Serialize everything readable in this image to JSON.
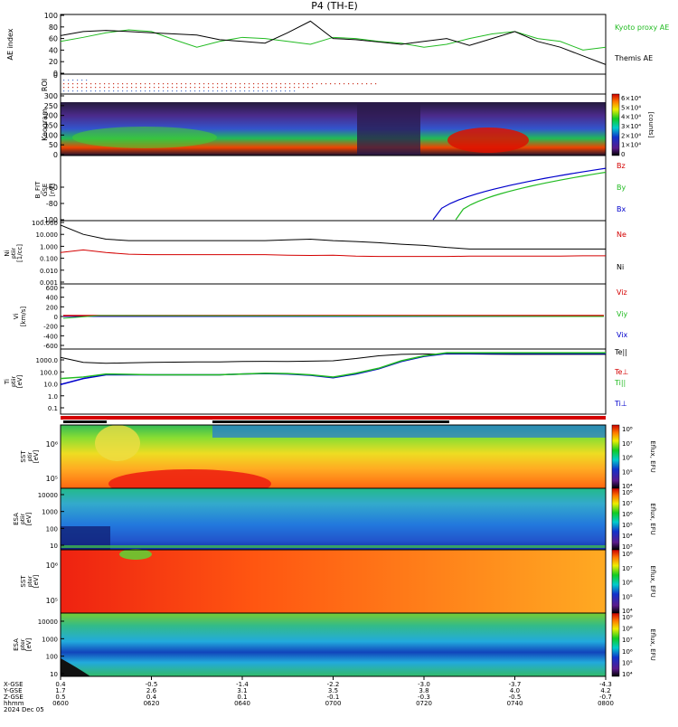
{
  "title": "P4 (TH-E)",
  "colors": {
    "axis": "#000000",
    "red": "#d40000",
    "green": "#22bb22",
    "blue": "#0000cc",
    "grey": "#888888"
  },
  "chart_data": [
    {
      "panel": "ae",
      "type": "line",
      "ylabel": "AE index",
      "ylim": [
        0,
        100
      ],
      "yticks": [
        "100",
        "80",
        "60",
        "40",
        "20",
        "0"
      ],
      "x": [
        0,
        5,
        10,
        15,
        20,
        25,
        30,
        35,
        40,
        45,
        50,
        55,
        60,
        65,
        70,
        75,
        80,
        85,
        90,
        95,
        100,
        105,
        110,
        115,
        120
      ],
      "series": [
        {
          "name": "Kyoto proxy AE",
          "color": "green",
          "values": [
            55,
            62,
            70,
            75,
            72,
            58,
            45,
            55,
            62,
            60,
            55,
            50,
            62,
            60,
            55,
            52,
            45,
            50,
            60,
            68,
            72,
            60,
            55,
            40,
            45
          ]
        },
        {
          "name": "Themis AE",
          "color": "black",
          "values": [
            65,
            72,
            74,
            72,
            70,
            68,
            66,
            58,
            55,
            52,
            70,
            90,
            60,
            58,
            54,
            50,
            55,
            60,
            48,
            60,
            72,
            55,
            45,
            30,
            15
          ]
        }
      ]
    },
    {
      "panel": "roi",
      "type": "scatter",
      "ylabel": "ROI",
      "ytick": "0"
    },
    {
      "panel": "keogram",
      "type": "heatmap",
      "ylabel": "Keogram",
      "ylim": [
        0,
        300
      ],
      "yticks": [
        "300",
        "250",
        "200",
        "150",
        "100",
        "50",
        "0"
      ],
      "colorbar": {
        "label": "[counts]",
        "ticks": [
          "6×10⁴",
          "5×10⁴",
          "4×10⁴",
          "3×10⁴",
          "2×10⁴",
          "1×10⁴",
          "0"
        ]
      }
    },
    {
      "panel": "bfit",
      "type": "line",
      "ylabel": "B_FIT",
      "ylabel_sub": "GSE",
      "yunit": "[nT]",
      "ylim": [
        -100,
        -20
      ],
      "yticks": [
        "-60",
        "-80",
        "-100"
      ],
      "series": [
        {
          "name": "Bz",
          "color": "red",
          "values": []
        },
        {
          "name": "By",
          "color": "green",
          "x": [
            87,
            120
          ],
          "values": [
            -100,
            -40
          ]
        },
        {
          "name": "Bx",
          "color": "blue",
          "x": [
            82,
            120
          ],
          "values": [
            -100,
            -35
          ]
        }
      ]
    },
    {
      "panel": "density",
      "type": "line",
      "ylabel": "Ni",
      "ylabel_sub": "ptiir",
      "yunit": "[1/cc]",
      "yscale": "log",
      "ylim": [
        0.001,
        100
      ],
      "yticks": [
        "100.000",
        "10.000",
        "1.000",
        "0.100",
        "0.010",
        "0.001"
      ],
      "series": [
        {
          "name": "Ne",
          "color": "red",
          "values": [
            0.3,
            0.5,
            0.3,
            0.22,
            0.2,
            0.2,
            0.2,
            0.2,
            0.2,
            0.2,
            0.18,
            0.17,
            0.18,
            0.15,
            0.14,
            0.14,
            0.14,
            0.14,
            0.15,
            0.15,
            0.15,
            0.15,
            0.15,
            0.16,
            0.16
          ]
        },
        {
          "name": "Ni",
          "color": "black",
          "values": [
            60,
            10,
            4,
            3,
            3,
            3,
            3,
            3,
            3,
            3,
            3.5,
            4,
            3,
            2.5,
            2,
            1.5,
            1.2,
            0.8,
            0.6,
            0.6,
            0.6,
            0.6,
            0.6,
            0.6,
            0.6
          ]
        }
      ]
    },
    {
      "panel": "velocity",
      "type": "line",
      "ylabel": "Vi",
      "yunit": "[km/s]",
      "ylim": [
        -700,
        700
      ],
      "yticks": [
        "600",
        "400",
        "200",
        "0",
        "-200",
        "-400",
        "-600"
      ],
      "series": [
        {
          "name": "Viz",
          "color": "red",
          "values": []
        },
        {
          "name": "Viy",
          "color": "green",
          "values": []
        },
        {
          "name": "Vix",
          "color": "blue",
          "values": []
        }
      ]
    },
    {
      "panel": "temperature",
      "type": "line",
      "ylabel": "Ti",
      "ylabel_sub": "ptiir",
      "yunit": "[eV]",
      "yscale": "log",
      "ylim": [
        0.05,
        5000
      ],
      "yticks": [
        "1000.0",
        "100.0",
        "10.0",
        "1.0",
        "0.1"
      ],
      "series": [
        {
          "name": "Te||",
          "color": "black",
          "values": [
            1500,
            600,
            500,
            550,
            600,
            620,
            650,
            650,
            700,
            720,
            700,
            750,
            800,
            1200,
            2000,
            2600,
            2800,
            2800,
            2800,
            2700,
            2600,
            2600,
            2600,
            2600,
            2600
          ]
        },
        {
          "name": "Te⊥",
          "color": "red",
          "values": []
        },
        {
          "name": "Ti||",
          "color": "green",
          "values": [
            30,
            40,
            70,
            65,
            60,
            60,
            60,
            60,
            70,
            80,
            75,
            60,
            40,
            80,
            200,
            800,
            2000,
            3500,
            3500,
            3500,
            3500,
            3500,
            3500,
            3500,
            3500
          ]
        },
        {
          "name": "Ti⊥",
          "color": "blue",
          "values": [
            10,
            30,
            60,
            60,
            60,
            60,
            60,
            60,
            70,
            75,
            70,
            55,
            35,
            70,
            180,
            700,
            1800,
            3000,
            3000,
            3000,
            3000,
            3000,
            3000,
            3000,
            3000
          ]
        }
      ]
    },
    {
      "panel": "sst_ion",
      "type": "heatmap",
      "ylabel": "SST",
      "ylabel_sub": "ptir",
      "yunit": "[eV]",
      "yticks": [
        "10⁶",
        "10⁵"
      ],
      "colorbar": {
        "label": "Eflux, EFU",
        "ticks": [
          "10⁸",
          "10⁷",
          "10⁶",
          "10⁵",
          "10⁴"
        ]
      }
    },
    {
      "panel": "esa_ion",
      "type": "heatmap",
      "ylabel": "ESA",
      "ylabel_sub": "ptiir",
      "yunit": "[eV]",
      "yticks": [
        "10000",
        "1000",
        "100",
        "10"
      ],
      "colorbar": {
        "label": "Eflux, EFU",
        "ticks": [
          "10⁸",
          "10⁷",
          "10⁶",
          "10⁵",
          "10⁴",
          "10³"
        ]
      }
    },
    {
      "panel": "sst_elec",
      "type": "heatmap",
      "ylabel": "SST",
      "ylabel_sub": "pter",
      "yunit": "[eV]",
      "yticks": [
        "10⁶",
        "10⁵"
      ],
      "colorbar": {
        "label": "Eflux, EFU",
        "ticks": [
          "10⁸",
          "10⁷",
          "10⁶",
          "10⁵",
          "10⁴"
        ]
      }
    },
    {
      "panel": "esa_elec",
      "type": "heatmap",
      "ylabel": "ESA",
      "ylabel_sub": "pter",
      "yunit": "[eV]",
      "yticks": [
        "10000",
        "1000",
        "100",
        "10"
      ],
      "colorbar": {
        "label": "Eflux, EFU",
        "ticks": [
          "10⁹",
          "10⁸",
          "10⁷",
          "10⁶",
          "10⁵",
          "10⁴"
        ]
      }
    }
  ],
  "x_axis": {
    "row_labels": [
      "X-GSE",
      "Y-GSE",
      "Z-GSE",
      "hhmm",
      "2024 Dec 05"
    ],
    "columns": [
      {
        "x": "0.4",
        "y": "1.7",
        "z": "0.5",
        "t": "0600"
      },
      {
        "x": "-0.5",
        "y": "2.6",
        "z": "0.4",
        "t": "0620"
      },
      {
        "x": "-1.4",
        "y": "3.1",
        "z": "0.1",
        "t": "0640"
      },
      {
        "x": "-2.2",
        "y": "3.5",
        "z": "-0.1",
        "t": "0700"
      },
      {
        "x": "-3.0",
        "y": "3.8",
        "z": "-0.3",
        "t": "0720"
      },
      {
        "x": "-3.7",
        "y": "4.0",
        "z": "-0.5",
        "t": "0740"
      },
      {
        "x": "-4.3",
        "y": "4.2",
        "z": "-0.7",
        "t": "0800"
      }
    ]
  }
}
